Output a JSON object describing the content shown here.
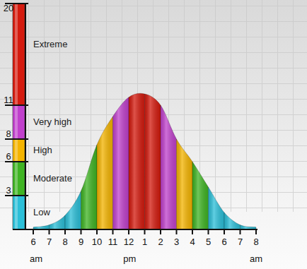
{
  "chart_data": {
    "type": "area",
    "categories": [
      "6",
      "7",
      "8",
      "9",
      "10",
      "11",
      "12",
      "1",
      "2",
      "3",
      "4",
      "5",
      "6",
      "7",
      "8"
    ],
    "values": [
      0.2,
      0.4,
      1.25,
      3.4,
      7.5,
      10,
      11.7,
      12,
      11,
      8,
      6,
      3.75,
      1.5,
      0.4,
      0.2
    ],
    "ylim": [
      0,
      20
    ],
    "yticks": [
      3,
      6,
      8,
      11,
      20
    ],
    "levels": [
      {
        "label": "Low",
        "min": 0,
        "max": 3,
        "color": "#2bbfd8"
      },
      {
        "label": "Moderate",
        "min": 3,
        "max": 6,
        "color": "#3fb423"
      },
      {
        "label": "High",
        "min": 6,
        "max": 8,
        "color": "#f4b400"
      },
      {
        "label": "Very high",
        "min": 8,
        "max": 11,
        "color": "#c040cc"
      },
      {
        "label": "Extreme",
        "min": 11,
        "max": 20,
        "color": "#d41a0e"
      }
    ],
    "annotations": [
      "am",
      "pm",
      "am"
    ],
    "grid": true
  }
}
